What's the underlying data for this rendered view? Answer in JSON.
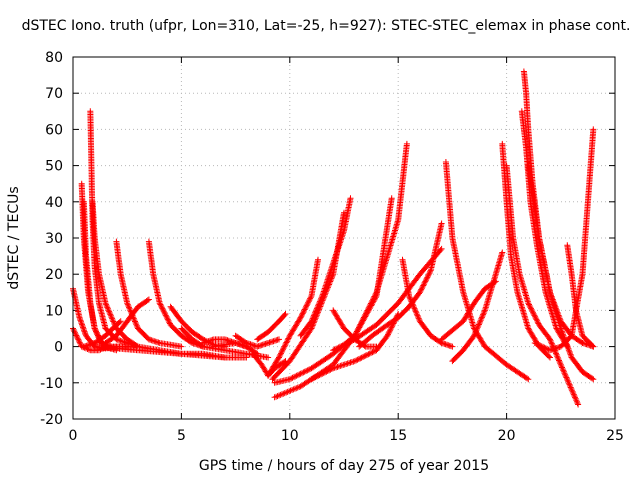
{
  "chart_data": {
    "type": "scatter",
    "title": "dSTEC Iono. truth (ufpr, Lon=310, Lat=-25, h=927): STEC-STEC_elemax in phase cont.",
    "xlabel": "GPS time / hours of day 275 of year 2015",
    "ylabel": "dSTEC  / TECUs",
    "xlim": [
      0,
      25
    ],
    "ylim": [
      -20,
      80
    ],
    "xticks": [
      0,
      5,
      10,
      15,
      20,
      25
    ],
    "yticks": [
      -20,
      -10,
      0,
      10,
      20,
      30,
      40,
      50,
      60,
      70,
      80
    ],
    "grid": true,
    "legend": "none",
    "marker": "+",
    "series_color": "#ff0000",
    "series": [
      {
        "x": [
          0.0,
          0.3,
          0.6,
          1.0,
          1.5,
          2.0
        ],
        "y": [
          16,
          8,
          3,
          0,
          -0.5,
          0
        ]
      },
      {
        "x": [
          0.0,
          0.4,
          0.8,
          1.2,
          1.6
        ],
        "y": [
          5,
          0,
          -1,
          -1,
          0
        ]
      },
      {
        "x": [
          0.4,
          0.5,
          0.7,
          1.0,
          1.4,
          2.0
        ],
        "y": [
          45,
          30,
          15,
          5,
          0,
          -1
        ]
      },
      {
        "x": [
          0.5,
          0.6,
          0.8,
          1.0,
          1.3,
          1.8,
          2.5
        ],
        "y": [
          40,
          25,
          12,
          5,
          1,
          0,
          0
        ]
      },
      {
        "x": [
          0.8,
          0.85,
          0.9,
          1.0,
          1.2,
          1.5,
          2.0,
          2.5,
          3.0
        ],
        "y": [
          65,
          50,
          35,
          22,
          12,
          5,
          2,
          1,
          0
        ]
      },
      {
        "x": [
          0.9,
          1.0,
          1.2,
          1.5,
          2.0,
          2.5,
          3.0
        ],
        "y": [
          40,
          30,
          20,
          12,
          5,
          2,
          0
        ]
      },
      {
        "x": [
          2.0,
          2.2,
          2.5,
          3.0,
          3.5,
          4.0,
          5.0
        ],
        "y": [
          29,
          20,
          12,
          5,
          2,
          1,
          0
        ]
      },
      {
        "x": [
          0.5,
          1.0,
          1.5,
          2.0,
          2.2
        ],
        "y": [
          0,
          1,
          3,
          6,
          7
        ]
      },
      {
        "x": [
          1.5,
          2.0,
          2.5,
          3.0,
          3.5
        ],
        "y": [
          1,
          3,
          7,
          11,
          13
        ]
      },
      {
        "x": [
          3.5,
          3.7,
          4.0,
          4.5,
          5.0,
          5.5,
          6.0
        ],
        "y": [
          29,
          20,
          12,
          6,
          3,
          1,
          0
        ]
      },
      {
        "x": [
          1.0,
          2.0,
          3.0,
          4.0,
          5.0,
          6.0,
          7.0
        ],
        "y": [
          0,
          -0.5,
          -1,
          -1.5,
          -2,
          -2.5,
          -3
        ]
      },
      {
        "x": [
          2.0,
          3.0,
          4.0,
          5.0,
          6.0,
          7.0,
          8.0
        ],
        "y": [
          0,
          0,
          -1,
          -2,
          -2,
          -3,
          -3
        ]
      },
      {
        "x": [
          4.5,
          5.0,
          5.5,
          6.0,
          6.5,
          7.0
        ],
        "y": [
          11,
          7,
          4,
          2,
          0.5,
          0
        ]
      },
      {
        "x": [
          5.0,
          5.5,
          6.0,
          7.0,
          8.0,
          9.0
        ],
        "y": [
          5,
          2,
          0,
          -1,
          -2,
          -3
        ]
      },
      {
        "x": [
          6.0,
          6.5,
          7.0,
          7.5,
          8.0
        ],
        "y": [
          1,
          2,
          2,
          1,
          0
        ]
      },
      {
        "x": [
          7.5,
          8.0,
          8.5,
          9.0,
          9.5
        ],
        "y": [
          3,
          1,
          0,
          1,
          2
        ]
      },
      {
        "x": [
          6.5,
          7.0,
          7.5,
          8.0,
          8.5
        ],
        "y": [
          0,
          0.5,
          1,
          0,
          -2
        ]
      },
      {
        "x": [
          8.5,
          9.0,
          9.5,
          9.8
        ],
        "y": [
          2,
          4,
          7,
          9
        ]
      },
      {
        "x": [
          8.3,
          8.7,
          9.0,
          9.3,
          9.8
        ],
        "y": [
          -2,
          -5,
          -8,
          -6,
          -4
        ]
      },
      {
        "x": [
          9.0,
          9.5,
          10.0,
          10.5,
          11.0,
          11.3
        ],
        "y": [
          -8,
          -3,
          3,
          8,
          14,
          24
        ]
      },
      {
        "x": [
          9.2,
          10.0,
          11.0,
          12.0,
          12.5
        ],
        "y": [
          -9,
          -4,
          5,
          20,
          37
        ]
      },
      {
        "x": [
          10.5,
          11.0,
          11.5,
          12.0,
          12.5,
          12.8
        ],
        "y": [
          3,
          7,
          14,
          23,
          32,
          41
        ]
      },
      {
        "x": [
          9.3,
          10.0,
          11.0,
          12.0,
          13.0,
          14.0,
          14.7
        ],
        "y": [
          -10,
          -9,
          -6,
          -2,
          3,
          14,
          41
        ]
      },
      {
        "x": [
          9.3,
          10.5,
          12.0,
          13.0,
          14.0,
          15.0,
          15.4
        ],
        "y": [
          -14,
          -11,
          -5,
          3,
          15,
          35,
          56
        ]
      },
      {
        "x": [
          12.0,
          12.5,
          13.0,
          13.5,
          14.0
        ],
        "y": [
          10,
          5,
          2,
          0,
          0
        ]
      },
      {
        "x": [
          11.0,
          12.0,
          13.0,
          14.0,
          14.5,
          15.0
        ],
        "y": [
          -9,
          -6,
          -4,
          -1,
          3,
          9
        ]
      },
      {
        "x": [
          13.2,
          13.8,
          14.5,
          15.0,
          15.5,
          16.0,
          16.5,
          17.0
        ],
        "y": [
          0,
          3,
          6,
          8,
          11,
          15,
          21,
          34
        ]
      },
      {
        "x": [
          15.2,
          15.5,
          16.0,
          16.5,
          17.0,
          17.5
        ],
        "y": [
          24,
          14,
          7,
          3,
          1,
          0
        ]
      },
      {
        "x": [
          12.0,
          13.0,
          14.0,
          15.0,
          16.0,
          17.0
        ],
        "y": [
          -1,
          2,
          6,
          12,
          20,
          27
        ]
      },
      {
        "x": [
          17.2,
          17.5,
          18.0,
          18.5,
          19.0,
          20.0,
          21.0
        ],
        "y": [
          51,
          30,
          15,
          5,
          0,
          -5,
          -9
        ]
      },
      {
        "x": [
          17.5,
          18.0,
          18.5,
          19.0,
          19.5,
          19.8
        ],
        "y": [
          -4,
          -1,
          3,
          10,
          20,
          26
        ]
      },
      {
        "x": [
          17.0,
          18.0,
          18.5,
          19.0,
          19.5
        ],
        "y": [
          2,
          7,
          12,
          16,
          18
        ]
      },
      {
        "x": [
          19.8,
          20.0,
          20.2,
          20.5,
          21.0,
          21.5,
          22.0
        ],
        "y": [
          56,
          40,
          25,
          15,
          5,
          0,
          -3
        ]
      },
      {
        "x": [
          20.0,
          20.3,
          20.6,
          21.0,
          21.5,
          22.0,
          22.5,
          23.3
        ],
        "y": [
          50,
          30,
          20,
          12,
          6,
          2,
          -5,
          -16
        ]
      },
      {
        "x": [
          20.8,
          20.9,
          21.0,
          21.2,
          21.5,
          22.0,
          22.5,
          23.0,
          23.5,
          24.0
        ],
        "y": [
          76,
          70,
          60,
          45,
          30,
          15,
          5,
          -3,
          -7,
          -9
        ]
      },
      {
        "x": [
          20.7,
          20.9,
          21.1,
          21.4,
          21.8,
          22.3,
          22.8
        ],
        "y": [
          65,
          55,
          40,
          28,
          15,
          5,
          0
        ]
      },
      {
        "x": [
          21.0,
          21.5,
          22.0,
          22.5,
          23.0,
          23.5,
          24.0
        ],
        "y": [
          50,
          30,
          15,
          7,
          3,
          1,
          0
        ]
      },
      {
        "x": [
          21.3,
          22.0,
          22.5,
          23.0,
          23.5,
          24.0
        ],
        "y": [
          1,
          -1,
          0,
          3,
          20,
          60
        ]
      },
      {
        "x": [
          22.8,
          23.0,
          23.2,
          23.5,
          24.0
        ],
        "y": [
          28,
          20,
          10,
          3,
          0
        ]
      }
    ]
  }
}
